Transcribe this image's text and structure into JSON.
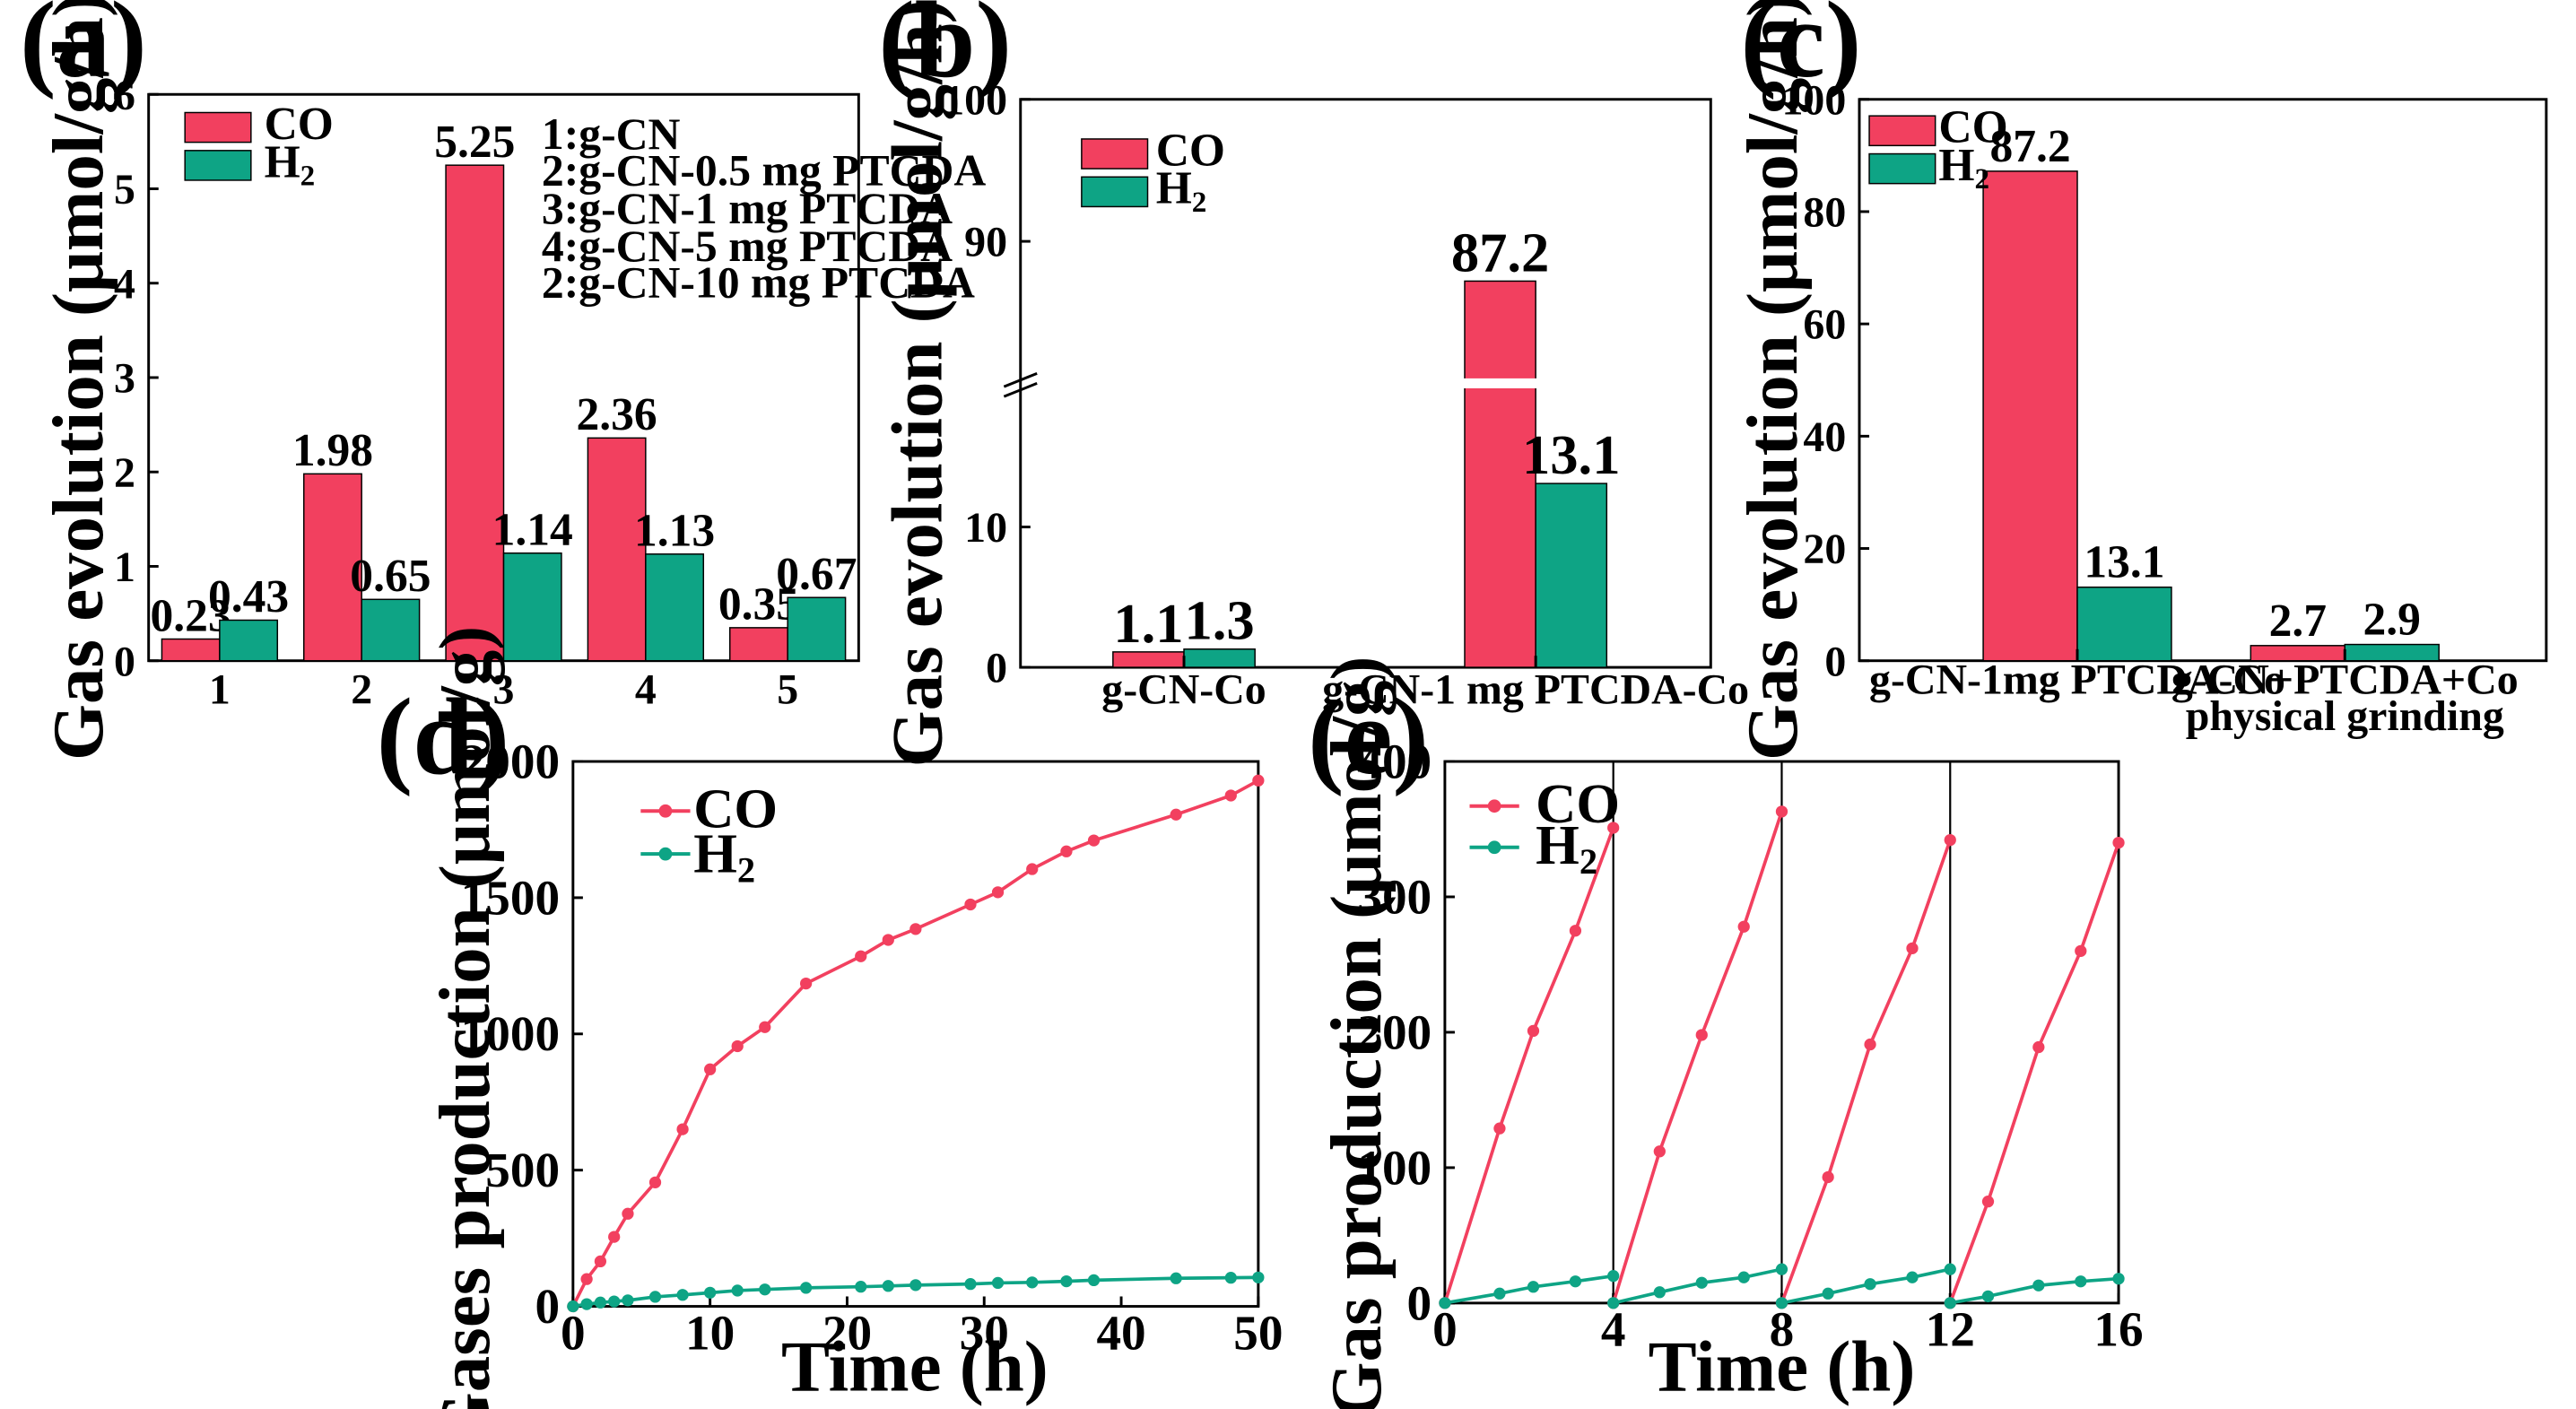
{
  "colors": {
    "CO": "#f2405f",
    "H2": "#0ea485",
    "axis": "#000000"
  },
  "chart_data": [
    {
      "panel": "(a)",
      "type": "bar",
      "ylabel": "Gas evolution (μmol/g/h)",
      "xlabel": "",
      "ylim": [
        0,
        6
      ],
      "yticks": [
        "0",
        "1",
        "2",
        "3",
        "4",
        "5",
        "6"
      ],
      "categories": [
        "1",
        "2",
        "3",
        "4",
        "5"
      ],
      "series": [
        {
          "name": "CO",
          "values": [
            0.23,
            1.98,
            5.25,
            2.36,
            0.35
          ],
          "labels": [
            "0.23",
            "1.98",
            "5.25",
            "2.36",
            "0.35"
          ]
        },
        {
          "name": "H2",
          "values": [
            0.43,
            0.65,
            1.14,
            1.13,
            0.67
          ],
          "labels": [
            "0.43",
            "0.65",
            "1.14",
            "1.13",
            "0.67"
          ]
        }
      ],
      "legend": {
        "co": "CO",
        "h2_main": "H",
        "h2_sub": "2"
      },
      "notes": [
        "1:g-CN",
        "2:g-CN-0.5 mg PTCDA",
        "3:g-CN-1 mg PTCDA",
        "4:g-CN-5 mg PTCDA",
        "2:g-CN-10 mg PTCDA"
      ]
    },
    {
      "panel": "(b)",
      "type": "bar",
      "ylabel": "Gas evolution (μmol/g/h)",
      "broken_axis": {
        "lower": [
          0,
          20
        ],
        "upper": [
          80,
          100
        ]
      },
      "yticks_lower": [
        "0",
        "10"
      ],
      "yticks_upper": [
        "90",
        "100"
      ],
      "categories": [
        "g-CN-Co",
        "g-CN-1 mg PTCDA-Co"
      ],
      "series": [
        {
          "name": "CO",
          "values": [
            1.1,
            87.2
          ],
          "labels": [
            "1.1",
            "87.2"
          ]
        },
        {
          "name": "H2",
          "values": [
            1.3,
            13.1
          ],
          "labels": [
            "1.3",
            "13.1"
          ]
        }
      ],
      "legend": {
        "co": "CO",
        "h2_main": "H",
        "h2_sub": "2"
      }
    },
    {
      "panel": "(c)",
      "type": "bar",
      "ylabel": "Gas evolution (μmol/g/h)",
      "ylim": [
        0,
        100
      ],
      "yticks": [
        "0",
        "20",
        "40",
        "60",
        "80",
        "100"
      ],
      "categories": [
        "g-CN-1mg PTCDA-Co",
        "g-CN+PTCDA+Co"
      ],
      "category_sublabels": [
        "",
        "physical grinding"
      ],
      "series": [
        {
          "name": "CO",
          "values": [
            87.2,
            2.7
          ],
          "labels": [
            "87.2",
            "2.7"
          ]
        },
        {
          "name": "H2",
          "values": [
            13.1,
            2.9
          ],
          "labels": [
            "13.1",
            "2.9"
          ]
        }
      ],
      "legend": {
        "co": "CO",
        "h2_main": "H",
        "h2_sub": "2"
      }
    },
    {
      "panel": "(d)",
      "type": "line",
      "ylabel": "Gases production (μmol/g)",
      "xlabel": "Time (h)",
      "xlim": [
        0,
        50
      ],
      "ylim": [
        0,
        2000
      ],
      "xticks": [
        "0",
        "10",
        "20",
        "30",
        "40",
        "50"
      ],
      "yticks": [
        "0",
        "500",
        "1000",
        "1500",
        "2000"
      ],
      "series": [
        {
          "name": "CO",
          "x": [
            0,
            1,
            2,
            3,
            4,
            6,
            8,
            10,
            12,
            14,
            17,
            21,
            23,
            25,
            29,
            31,
            33.5,
            36,
            38,
            44,
            48,
            50
          ],
          "y": [
            0,
            100,
            165,
            255,
            340,
            455,
            650,
            870,
            955,
            1025,
            1185,
            1285,
            1345,
            1385,
            1475,
            1520,
            1605,
            1670,
            1710,
            1805,
            1875,
            1930
          ]
        },
        {
          "name": "H2",
          "x": [
            0,
            1,
            2,
            3,
            4,
            6,
            8,
            10,
            12,
            14,
            17,
            21,
            23,
            25,
            29,
            31,
            33.5,
            36,
            38,
            44,
            48,
            50
          ],
          "y": [
            0,
            8,
            14,
            18,
            22,
            35,
            42,
            50,
            58,
            62,
            68,
            72,
            75,
            78,
            82,
            86,
            88,
            92,
            96,
            103,
            105,
            106
          ]
        }
      ],
      "legend": {
        "co": "CO",
        "h2_main": "H",
        "h2_sub": "2"
      }
    },
    {
      "panel": "(e)",
      "type": "line",
      "ylabel": "Gas production (μmol/g)",
      "xlabel": "Time (h)",
      "xlim": [
        0,
        16
      ],
      "ylim": [
        0,
        400
      ],
      "xticks": [
        "0",
        "4",
        "8",
        "12",
        "16"
      ],
      "yticks": [
        "0",
        "100",
        "200",
        "300",
        "400"
      ],
      "cycle_dividers": [
        4,
        8,
        12
      ],
      "series": [
        {
          "name": "CO",
          "cycles": [
            {
              "x": [
                0,
                1.3,
                2.1,
                3.1,
                4
              ],
              "y": [
                0,
                129,
                201,
                275,
                351
              ]
            },
            {
              "x": [
                4,
                5.1,
                6.1,
                7.1,
                8
              ],
              "y": [
                0,
                112,
                198,
                278,
                363
              ]
            },
            {
              "x": [
                8,
                9.1,
                10.1,
                11.1,
                12
              ],
              "y": [
                0,
                93,
                191,
                262,
                342
              ]
            },
            {
              "x": [
                12,
                12.9,
                14.1,
                15.1,
                16
              ],
              "y": [
                0,
                75,
                189,
                260,
                340
              ]
            }
          ]
        },
        {
          "name": "H2",
          "cycles": [
            {
              "x": [
                0,
                1.3,
                2.1,
                3.1,
                4
              ],
              "y": [
                0,
                7,
                12,
                16,
                20
              ]
            },
            {
              "x": [
                4,
                5.1,
                6.1,
                7.1,
                8
              ],
              "y": [
                0,
                8,
                15,
                19,
                25
              ]
            },
            {
              "x": [
                8,
                9.1,
                10.1,
                11.1,
                12
              ],
              "y": [
                0,
                7,
                14,
                19,
                25
              ]
            },
            {
              "x": [
                12,
                12.9,
                14.1,
                15.1,
                16
              ],
              "y": [
                0,
                5,
                13,
                16,
                18
              ]
            }
          ]
        }
      ],
      "legend": {
        "co": "CO",
        "h2_main": "H",
        "h2_sub": "2"
      }
    }
  ]
}
